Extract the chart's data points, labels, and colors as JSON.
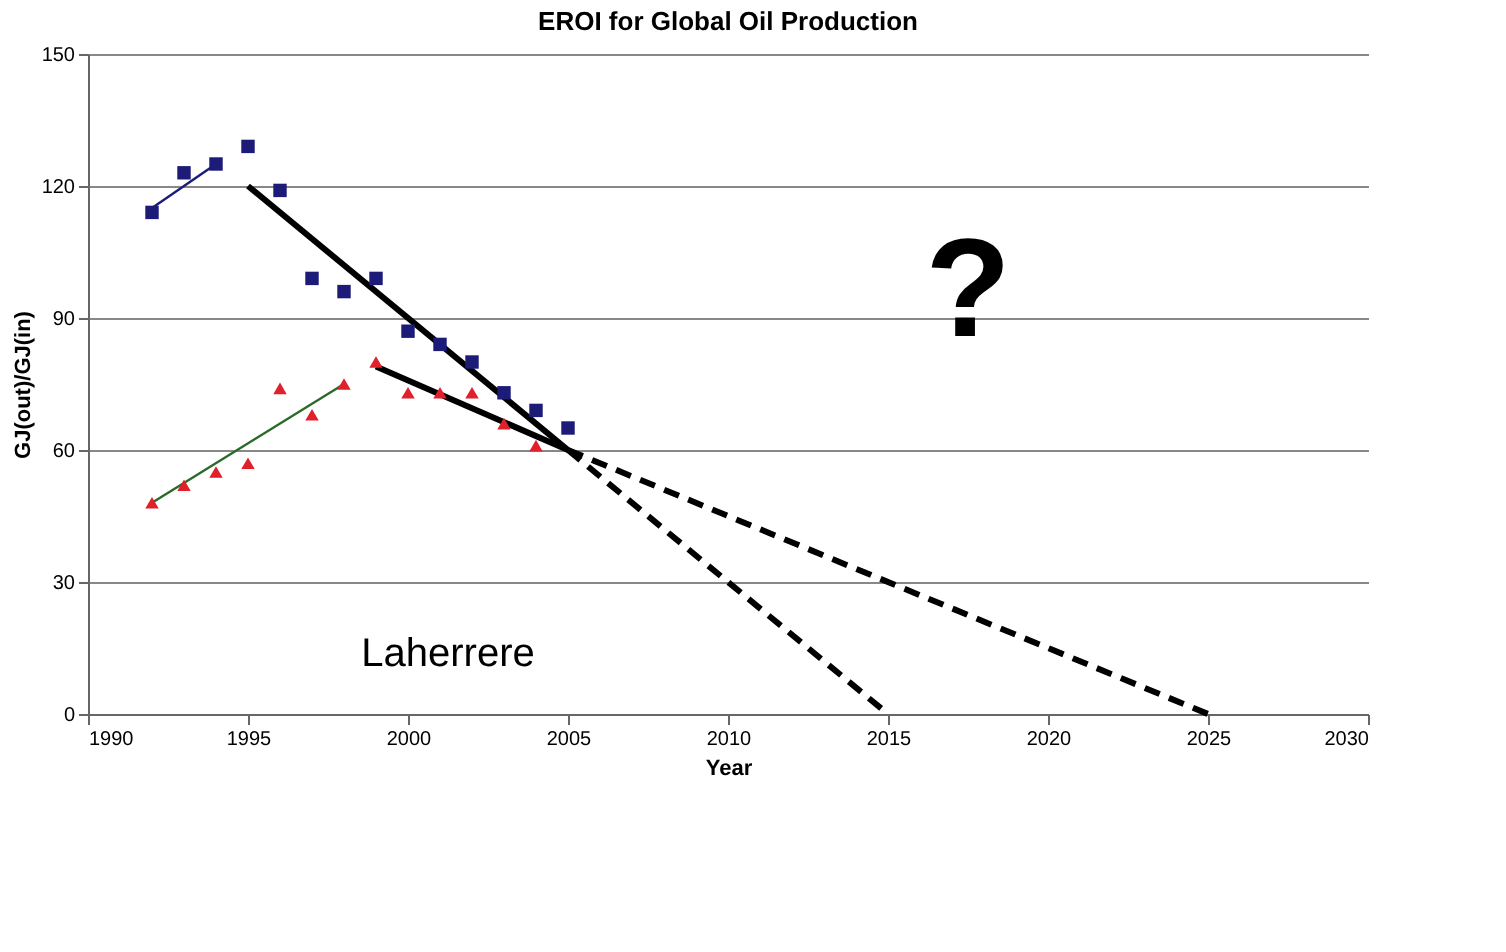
{
  "chart_data": {
    "type": "scatter",
    "title": "EROI for Global Oil Production",
    "xlabel": "Year",
    "ylabel": "GJ(out)/GJ(in)",
    "xlim": [
      1990,
      2030
    ],
    "xticks": [
      1990,
      1995,
      2000,
      2005,
      2010,
      2015,
      2020,
      2025,
      2030
    ],
    "ylim": [
      0,
      150
    ],
    "yticks": [
      0,
      30,
      60,
      90,
      120,
      150
    ],
    "grid": "y",
    "series": [
      {
        "type": "scatter",
        "marker": "square",
        "color": "#1c1c78",
        "x": [
          1992,
          1993,
          1994,
          1995,
          1996,
          1997,
          1998,
          1999,
          2000,
          2001,
          2002,
          2003,
          2004,
          2005
        ],
        "values": [
          114,
          123,
          125,
          129,
          119,
          99,
          96,
          99,
          87,
          84,
          80,
          73,
          69,
          65
        ]
      },
      {
        "type": "scatter",
        "marker": "triangle",
        "color": "#e0202a",
        "x": [
          1992,
          1993,
          1994,
          1995,
          1996,
          1997,
          1998,
          1999,
          2000,
          2001,
          2002,
          2003,
          2004
        ],
        "values": [
          48,
          52,
          55,
          57,
          74,
          68,
          75,
          80,
          73,
          73,
          73,
          66,
          61
        ]
      },
      {
        "type": "line",
        "color": "#1c1c78",
        "line_style": "solid",
        "x": [
          1992,
          1994
        ],
        "values": [
          115,
          125
        ]
      },
      {
        "type": "line",
        "color": "#000000",
        "line_style": "solid",
        "x": [
          1995,
          2005
        ],
        "values": [
          120,
          60
        ]
      },
      {
        "type": "line",
        "color": "#2a6a2a",
        "line_style": "solid",
        "x": [
          1992,
          1998
        ],
        "values": [
          48,
          75
        ]
      },
      {
        "type": "line",
        "color": "#000000",
        "line_style": "solid",
        "x": [
          1999,
          2005
        ],
        "values": [
          79,
          60
        ]
      },
      {
        "type": "line",
        "color": "#000000",
        "line_style": "dashed",
        "x": [
          2005,
          2015
        ],
        "values": [
          60,
          0
        ]
      },
      {
        "type": "line",
        "color": "#000000",
        "line_style": "dashed",
        "x": [
          2005,
          2025
        ],
        "values": [
          60,
          0
        ]
      }
    ],
    "annotations": [
      "?",
      "Laherrere"
    ]
  }
}
